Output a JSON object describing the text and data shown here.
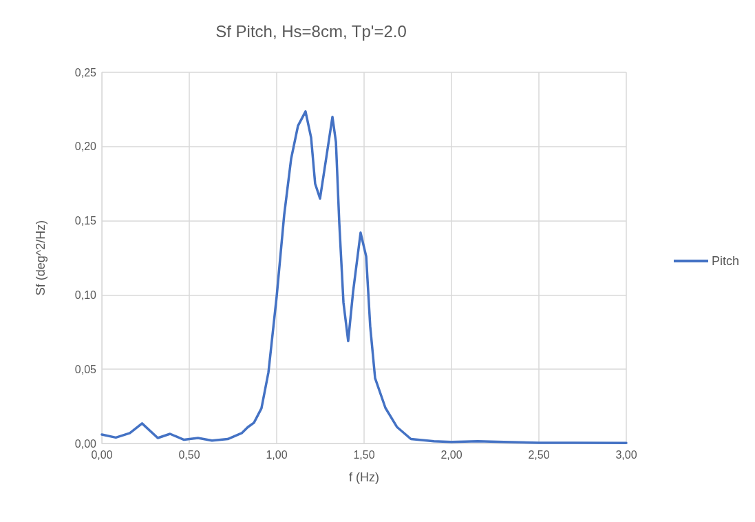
{
  "chart_data": {
    "type": "line",
    "title": "Sf Pitch, Hs=8cm, Tp'=2.0",
    "xlabel": "f (Hz)",
    "ylabel": "Sf (deg^2/Hz)",
    "xlim": [
      0,
      3
    ],
    "ylim": [
      0,
      0.25
    ],
    "xticks": [
      {
        "value": 0,
        "label": "0,00"
      },
      {
        "value": 0.5,
        "label": "0,50"
      },
      {
        "value": 1,
        "label": "1,00"
      },
      {
        "value": 1.5,
        "label": "1,50"
      },
      {
        "value": 2,
        "label": "2,00"
      },
      {
        "value": 2.5,
        "label": "2,50"
      },
      {
        "value": 3,
        "label": "3,00"
      }
    ],
    "yticks": [
      {
        "value": 0,
        "label": "0,00"
      },
      {
        "value": 0.05,
        "label": "0,05"
      },
      {
        "value": 0.1,
        "label": "0,10"
      },
      {
        "value": 0.15,
        "label": "0,15"
      },
      {
        "value": 0.2,
        "label": "0,20"
      },
      {
        "value": 0.25,
        "label": "0,25"
      }
    ],
    "grid": true,
    "legend": "right",
    "marker": "none",
    "line_style": "solid",
    "series": [
      {
        "name": "Pitch",
        "color": "#4472c4",
        "x": [
          0,
          0.08,
          0.16,
          0.23,
          0.32,
          0.39,
          0.47,
          0.55,
          0.63,
          0.72,
          0.8,
          0.835,
          0.87,
          0.913,
          0.953,
          1.0,
          1.043,
          1.083,
          1.122,
          1.165,
          1.197,
          1.22,
          1.248,
          1.287,
          1.319,
          1.339,
          1.358,
          1.382,
          1.409,
          1.437,
          1.48,
          1.512,
          1.535,
          1.563,
          1.622,
          1.689,
          1.768,
          1.9,
          2.0,
          2.15,
          2.3,
          2.5,
          2.7,
          3.0
        ],
        "values": [
          0.006,
          0.004,
          0.007,
          0.0135,
          0.0037,
          0.0065,
          0.0025,
          0.0037,
          0.002,
          0.003,
          0.007,
          0.011,
          0.014,
          0.0237,
          0.048,
          0.099,
          0.154,
          0.192,
          0.214,
          0.2236,
          0.206,
          0.175,
          0.165,
          0.195,
          0.22,
          0.203,
          0.149,
          0.095,
          0.069,
          0.102,
          0.142,
          0.126,
          0.079,
          0.044,
          0.024,
          0.011,
          0.003,
          0.0015,
          0.001,
          0.0015,
          0.001,
          0.0005,
          0.0005,
          0.0003
        ]
      }
    ]
  }
}
